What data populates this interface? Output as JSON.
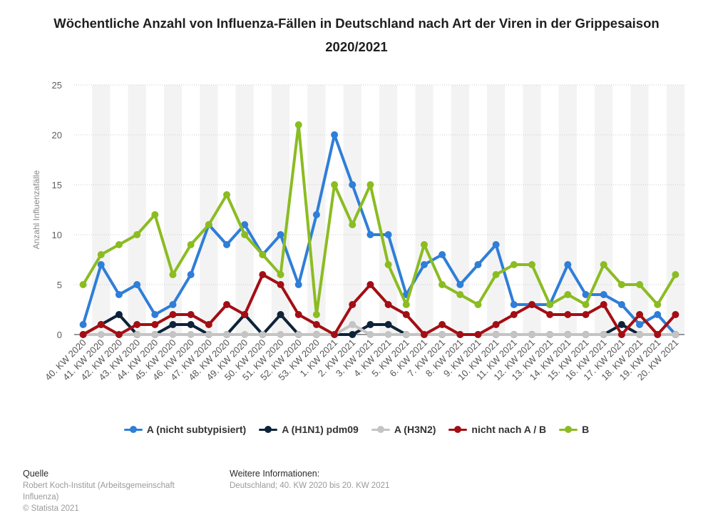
{
  "title": "Wöchentliche Anzahl von Influenza-Fällen in Deutschland nach Art der Viren in der Grippesaison 2020/2021",
  "colors": {
    "a_nicht": "#2f7ed8",
    "h1n1": "#0d233a",
    "h3n2": "#c4c4c4",
    "nicht_ab": "#a30e14",
    "b": "#8bbc21",
    "grid": "#cccccc",
    "stripe": "#f3f3f3"
  },
  "chart_data": {
    "type": "line",
    "ylabel": "Anzahl Influenzafälle",
    "xlabel": "",
    "ylim": [
      0,
      25
    ],
    "yticks": [
      0,
      5,
      10,
      15,
      20,
      25
    ],
    "grid": true,
    "legend_position": "bottom",
    "categories": [
      "40. KW 2020",
      "41. KW 2020",
      "42. KW 2020",
      "43. KW 2020",
      "44. KW 2020",
      "45. KW 2020",
      "46. KW 2020",
      "47. KW 2020",
      "48. KW 2020",
      "49. KW 2020",
      "50. KW 2020",
      "51. KW 2020",
      "52. KW 2020",
      "53. KW 2020",
      "1. KW 2021",
      "2. KW 2021",
      "3. KW 2021",
      "4. KW 2021",
      "5. KW 2021",
      "6. KW 2021",
      "7. KW 2021",
      "8. KW 2021",
      "9. KW 2021",
      "10. KW 2021",
      "11. KW 2021",
      "12. KW 2021",
      "13. KW 2021",
      "14. KW 2021",
      "15. KW 2021",
      "16. KW 2021",
      "17. KW 2021",
      "18. KW 2021",
      "19. KW 2021",
      "20. KW 2021"
    ],
    "series": [
      {
        "name": "A (nicht subtypisiert)",
        "color_key": "a_nicht",
        "values": [
          1,
          7,
          4,
          5,
          2,
          3,
          6,
          11,
          9,
          11,
          8,
          10,
          5,
          12,
          20,
          15,
          10,
          10,
          4,
          7,
          8,
          5,
          7,
          9,
          3,
          3,
          3,
          7,
          4,
          4,
          3,
          1,
          2,
          0
        ]
      },
      {
        "name": "A (H1N1) pdm09",
        "color_key": "h1n1",
        "values": [
          0,
          1,
          2,
          0,
          0,
          1,
          1,
          0,
          0,
          2,
          0,
          2,
          0,
          0,
          0,
          0,
          1,
          1,
          0,
          0,
          0,
          0,
          0,
          0,
          0,
          0,
          0,
          0,
          0,
          0,
          1,
          0,
          0,
          0
        ]
      },
      {
        "name": "A (H3N2)",
        "color_key": "h3n2",
        "values": [
          0,
          0,
          0,
          0,
          0,
          0,
          0,
          0,
          0,
          0,
          0,
          0,
          0,
          0,
          0,
          1,
          0,
          0,
          0,
          0,
          0,
          0,
          0,
          0,
          0,
          0,
          0,
          0,
          0,
          0,
          0,
          0,
          0,
          0
        ]
      },
      {
        "name": "nicht nach A / B",
        "color_key": "nicht_ab",
        "values": [
          0,
          1,
          0,
          1,
          1,
          2,
          2,
          1,
          3,
          2,
          6,
          5,
          2,
          1,
          0,
          3,
          5,
          3,
          2,
          0,
          1,
          0,
          0,
          1,
          2,
          3,
          2,
          2,
          2,
          3,
          0,
          2,
          0,
          2
        ]
      },
      {
        "name": "B",
        "color_key": "b",
        "values": [
          5,
          8,
          9,
          10,
          12,
          6,
          9,
          11,
          14,
          10,
          8,
          6,
          21,
          2,
          15,
          11,
          15,
          7,
          3,
          9,
          5,
          4,
          3,
          6,
          7,
          7,
          3,
          4,
          3,
          7,
          5,
          5,
          3,
          6
        ]
      }
    ]
  },
  "footer": {
    "source_heading": "Quelle",
    "source_lines": [
      "Robert Koch-Institut (Arbeitsgemeinschaft",
      "Influenza)",
      "© Statista 2021"
    ],
    "info_heading": "Weitere Informationen:",
    "info_lines": [
      "Deutschland; 40. KW 2020 bis 20. KW 2021"
    ]
  }
}
